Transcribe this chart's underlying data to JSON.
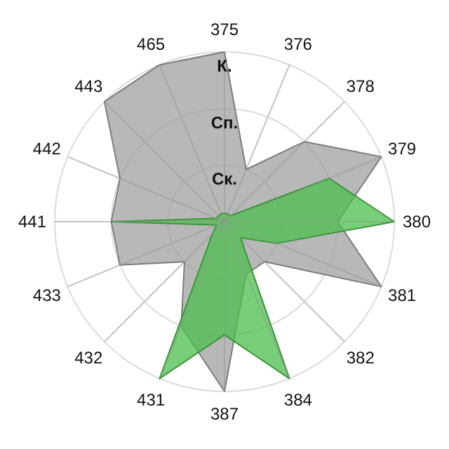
{
  "chart_data": {
    "type": "radar",
    "categories": [
      "375",
      "376",
      "378",
      "379",
      "380",
      "381",
      "382",
      "384",
      "387",
      "431",
      "432",
      "433",
      "441",
      "442",
      "443",
      "465"
    ],
    "ylim": [
      0,
      3
    ],
    "yticks": [
      {
        "value": 1,
        "label": "Ск."
      },
      {
        "value": 2,
        "label": "Сп."
      },
      {
        "value": 3,
        "label": "К."
      }
    ],
    "grid": true,
    "series": [
      {
        "color": "#a0a0a0",
        "values": [
          3,
          1,
          2,
          3,
          2,
          3,
          1,
          1,
          3,
          2,
          1,
          2,
          2,
          2,
          3,
          3
        ]
      },
      {
        "color": "#4cbf4c",
        "values": [
          0.15,
          0.15,
          0.15,
          2,
          3,
          1,
          0.4,
          3,
          2,
          3,
          0.3,
          0.15,
          2,
          0.15,
          0.15,
          0.15
        ]
      }
    ]
  }
}
